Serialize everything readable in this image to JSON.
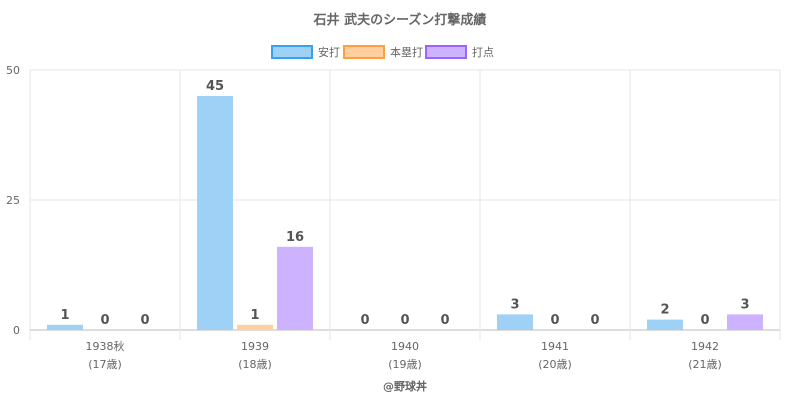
{
  "chart_data": {
    "type": "bar",
    "title": "石井 武夫のシーズン打撃成績",
    "categories": [
      {
        "year": "1938秋",
        "age": "(17歳)"
      },
      {
        "year": "1939",
        "age": "(18歳)"
      },
      {
        "year": "1940",
        "age": "(19歳)"
      },
      {
        "year": "1941",
        "age": "(20歳)"
      },
      {
        "year": "1942",
        "age": "(21歳)"
      }
    ],
    "series": [
      {
        "name": "安打",
        "values": [
          1,
          45,
          0,
          3,
          2
        ],
        "fill": "#9fd0f5",
        "stroke": "#36a2eb"
      },
      {
        "name": "本塁打",
        "values": [
          0,
          1,
          0,
          0,
          0
        ],
        "fill": "#ffcf9f",
        "stroke": "#ff9f40"
      },
      {
        "name": "打点",
        "values": [
          0,
          16,
          0,
          0,
          3
        ],
        "fill": "#ccb2ff",
        "stroke": "#9966ff"
      }
    ],
    "yticks": [
      0,
      25,
      50
    ],
    "ylim": [
      0,
      50
    ],
    "grid": true,
    "legend": "top-center",
    "credit": "@野球丼"
  }
}
